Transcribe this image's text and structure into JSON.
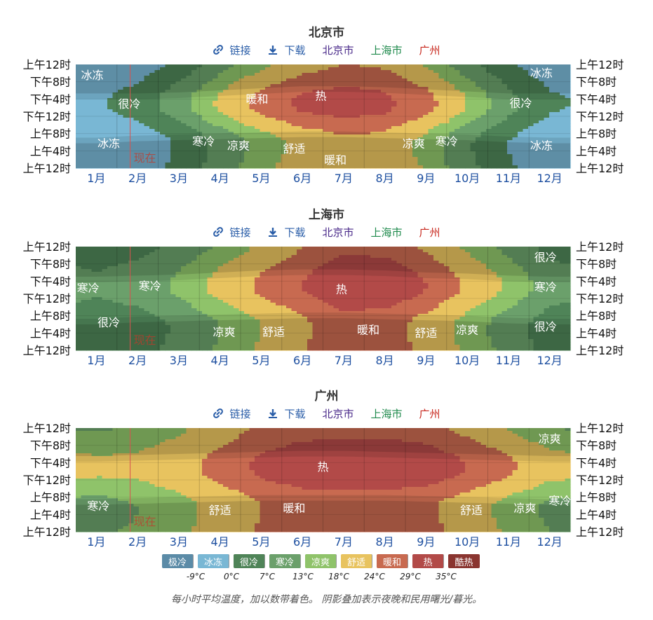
{
  "links": {
    "link_label": "链接",
    "download_label": "下载",
    "beijing_label": "北京市",
    "shanghai_label": "上海市",
    "guangzhou_label": "广州"
  },
  "colors": {
    "极冷": "#5b8ba7",
    "冰冻": "#79b7d4",
    "很冷": "#4f8458",
    "寒冷": "#6ba06b",
    "凉爽": "#8fc36a",
    "舒适": "#e8c35f",
    "暖和": "#c86a50",
    "热": "#b24a48",
    "酷热": "#8a3530",
    "now_line": "#d9534f",
    "month_label": "#1d4fa0"
  },
  "chart_data": [
    {
      "type": "heatmap",
      "title": "北京市",
      "months": [
        "1月",
        "2月",
        "3月",
        "4月",
        "5月",
        "6月",
        "7月",
        "8月",
        "9月",
        "10月",
        "11月",
        "12月"
      ],
      "hour_ticks": [
        "上午12时",
        "下午8时",
        "下午4时",
        "下午12时",
        "上午8时",
        "上午4时",
        "上午12时"
      ],
      "now_label": "现在",
      "now_month_fraction": 1.32,
      "nightfall_morning": [
        0.24,
        0.26,
        0.27,
        0.28,
        0.29,
        0.3,
        0.3,
        0.29,
        0.28,
        0.27,
        0.25,
        0.24
      ],
      "nightfall_evening": [
        0.72,
        0.72,
        0.73,
        0.75,
        0.77,
        0.79,
        0.79,
        0.78,
        0.76,
        0.74,
        0.72,
        0.72
      ],
      "day_temp": [
        -1,
        3,
        11,
        19,
        26,
        30,
        31,
        30,
        26,
        18,
        9,
        1
      ],
      "night_temp": [
        -9,
        -6,
        1,
        9,
        15,
        20,
        23,
        22,
        16,
        8,
        0,
        -6
      ],
      "peak_hour_fraction": 0.36,
      "annotations": [
        {
          "text": "冰冻",
          "m": 0.4,
          "h": 0.9
        },
        {
          "text": "很冷",
          "m": 1.3,
          "h": 0.62
        },
        {
          "text": "冰冻",
          "m": 0.8,
          "h": 0.24
        },
        {
          "text": "寒冷",
          "m": 3.1,
          "h": 0.26
        },
        {
          "text": "凉爽",
          "m": 3.95,
          "h": 0.22
        },
        {
          "text": "暖和",
          "m": 4.4,
          "h": 0.67
        },
        {
          "text": "热",
          "m": 5.95,
          "h": 0.7
        },
        {
          "text": "舒适",
          "m": 5.3,
          "h": 0.19
        },
        {
          "text": "暖和",
          "m": 6.3,
          "h": 0.08
        },
        {
          "text": "凉爽",
          "m": 8.2,
          "h": 0.24
        },
        {
          "text": "寒冷",
          "m": 9.0,
          "h": 0.26
        },
        {
          "text": "很冷",
          "m": 10.8,
          "h": 0.63
        },
        {
          "text": "冰冻",
          "m": 11.3,
          "h": 0.92
        },
        {
          "text": "冰冻",
          "m": 11.3,
          "h": 0.22
        }
      ]
    },
    {
      "type": "heatmap",
      "title": "上海市",
      "months": [
        "1月",
        "2月",
        "3月",
        "4月",
        "5月",
        "6月",
        "7月",
        "8月",
        "9月",
        "10月",
        "11月",
        "12月"
      ],
      "hour_ticks": [
        "上午12时",
        "下午8时",
        "下午4时",
        "下午12时",
        "上午8时",
        "上午4时",
        "上午12时"
      ],
      "now_label": "现在",
      "now_month_fraction": 1.32,
      "nightfall_morning": [
        0.25,
        0.27,
        0.28,
        0.29,
        0.3,
        0.31,
        0.31,
        0.3,
        0.29,
        0.28,
        0.26,
        0.25
      ],
      "nightfall_evening": [
        0.71,
        0.72,
        0.73,
        0.75,
        0.77,
        0.78,
        0.78,
        0.77,
        0.75,
        0.74,
        0.72,
        0.71
      ],
      "day_temp": [
        8,
        10,
        14,
        20,
        25,
        29,
        33,
        33,
        29,
        23,
        17,
        10
      ],
      "night_temp": [
        2,
        4,
        8,
        13,
        18,
        23,
        27,
        26,
        22,
        16,
        10,
        4
      ],
      "peak_hour_fraction": 0.36,
      "annotations": [
        {
          "text": "很冷",
          "m": 11.4,
          "h": 0.9
        },
        {
          "text": "寒冷",
          "m": 0.3,
          "h": 0.6
        },
        {
          "text": "寒冷",
          "m": 1.8,
          "h": 0.62
        },
        {
          "text": "很冷",
          "m": 0.8,
          "h": 0.27
        },
        {
          "text": "凉爽",
          "m": 3.6,
          "h": 0.18
        },
        {
          "text": "舒适",
          "m": 4.8,
          "h": 0.18
        },
        {
          "text": "热",
          "m": 6.45,
          "h": 0.59
        },
        {
          "text": "暖和",
          "m": 7.1,
          "h": 0.2
        },
        {
          "text": "舒适",
          "m": 8.5,
          "h": 0.17
        },
        {
          "text": "凉爽",
          "m": 9.5,
          "h": 0.2
        },
        {
          "text": "寒冷",
          "m": 11.4,
          "h": 0.61
        },
        {
          "text": "很冷",
          "m": 11.4,
          "h": 0.23
        }
      ]
    },
    {
      "type": "heatmap",
      "title": "广州",
      "months": [
        "1月",
        "2月",
        "3月",
        "4月",
        "5月",
        "6月",
        "7月",
        "8月",
        "9月",
        "10月",
        "11月",
        "12月"
      ],
      "hour_ticks": [
        "上午12时",
        "下午8时",
        "下午4时",
        "下午12时",
        "上午8时",
        "上午4时",
        "上午12时"
      ],
      "now_label": "现在",
      "now_month_fraction": 1.32,
      "nightfall_morning": [
        0.26,
        0.27,
        0.28,
        0.29,
        0.3,
        0.3,
        0.3,
        0.3,
        0.29,
        0.28,
        0.27,
        0.26
      ],
      "nightfall_evening": [
        0.73,
        0.74,
        0.75,
        0.76,
        0.77,
        0.78,
        0.78,
        0.77,
        0.76,
        0.75,
        0.74,
        0.73
      ],
      "day_temp": [
        19,
        19,
        22,
        26,
        30,
        32,
        33,
        33,
        32,
        29,
        25,
        20
      ],
      "night_temp": [
        11,
        13,
        16,
        20,
        24,
        26,
        26,
        26,
        25,
        21,
        16,
        12
      ],
      "peak_hour_fraction": 0.38,
      "annotations": [
        {
          "text": "凉爽",
          "m": 11.5,
          "h": 0.9
        },
        {
          "text": "热",
          "m": 6.0,
          "h": 0.63
        },
        {
          "text": "寒冷",
          "m": 0.55,
          "h": 0.25
        },
        {
          "text": "舒适",
          "m": 3.5,
          "h": 0.21
        },
        {
          "text": "暖和",
          "m": 5.3,
          "h": 0.23
        },
        {
          "text": "舒适",
          "m": 9.6,
          "h": 0.21
        },
        {
          "text": "凉爽",
          "m": 10.9,
          "h": 0.23
        },
        {
          "text": "寒冷",
          "m": 11.75,
          "h": 0.3
        }
      ]
    }
  ],
  "legend": {
    "items": [
      {
        "label": "极冷",
        "color": "#5b8ba7"
      },
      {
        "label": "冰冻",
        "color": "#79b7d4"
      },
      {
        "label": "很冷",
        "color": "#4f8458"
      },
      {
        "label": "寒冷",
        "color": "#6ba06b"
      },
      {
        "label": "凉爽",
        "color": "#8fc36a"
      },
      {
        "label": "舒适",
        "color": "#e8c35f"
      },
      {
        "label": "暖和",
        "color": "#c86a50"
      },
      {
        "label": "热",
        "color": "#b24a48"
      },
      {
        "label": "酷热",
        "color": "#8a3530"
      }
    ],
    "thresholds": [
      "-9°C",
      "0°C",
      "7°C",
      "13°C",
      "18°C",
      "24°C",
      "29°C",
      "35°C"
    ]
  },
  "footnote": "每小时平均温度，加以数带着色。 阴影叠加表示夜晚和民用曙光/暮光。"
}
